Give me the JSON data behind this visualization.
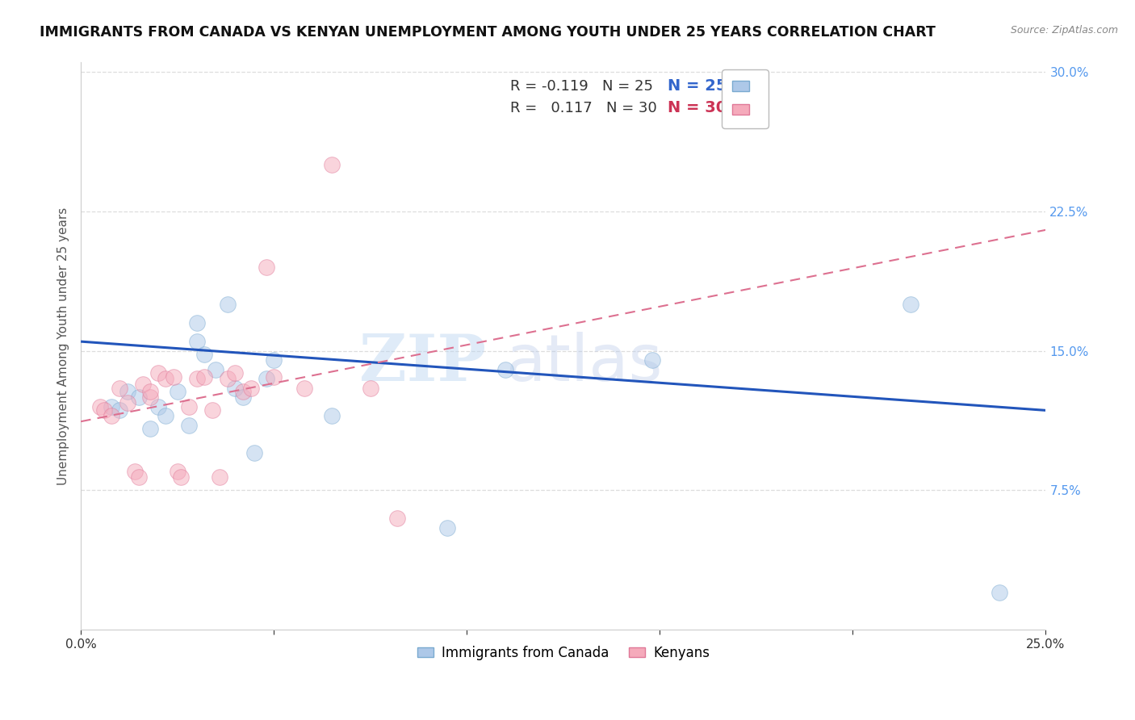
{
  "title": "IMMIGRANTS FROM CANADA VS KENYAN UNEMPLOYMENT AMONG YOUTH UNDER 25 YEARS CORRELATION CHART",
  "source": "Source: ZipAtlas.com",
  "ylabel": "Unemployment Among Youth under 25 years",
  "xlim": [
    0.0,
    0.25
  ],
  "ylim": [
    0.0,
    0.305
  ],
  "xticks": [
    0.0,
    0.05,
    0.1,
    0.15,
    0.2,
    0.25
  ],
  "xtick_labels": [
    "0.0%",
    "",
    "",
    "",
    "",
    "25.0%"
  ],
  "yticks_right": [
    0.075,
    0.15,
    0.225,
    0.3
  ],
  "ytick_labels_right": [
    "7.5%",
    "15.0%",
    "22.5%",
    "30.0%"
  ],
  "blue_scatter_x": [
    0.008,
    0.01,
    0.012,
    0.015,
    0.018,
    0.02,
    0.022,
    0.025,
    0.028,
    0.03,
    0.03,
    0.032,
    0.035,
    0.038,
    0.04,
    0.042,
    0.045,
    0.048,
    0.05,
    0.065,
    0.095,
    0.11,
    0.148,
    0.215,
    0.238
  ],
  "blue_scatter_y": [
    0.12,
    0.118,
    0.128,
    0.125,
    0.108,
    0.12,
    0.115,
    0.128,
    0.11,
    0.155,
    0.165,
    0.148,
    0.14,
    0.175,
    0.13,
    0.125,
    0.095,
    0.135,
    0.145,
    0.115,
    0.055,
    0.14,
    0.145,
    0.175,
    0.02
  ],
  "pink_scatter_x": [
    0.005,
    0.006,
    0.008,
    0.01,
    0.012,
    0.014,
    0.015,
    0.016,
    0.018,
    0.018,
    0.02,
    0.022,
    0.024,
    0.025,
    0.026,
    0.028,
    0.03,
    0.032,
    0.034,
    0.036,
    0.038,
    0.04,
    0.042,
    0.044,
    0.048,
    0.05,
    0.058,
    0.065,
    0.075,
    0.082
  ],
  "pink_scatter_y": [
    0.12,
    0.118,
    0.115,
    0.13,
    0.122,
    0.085,
    0.082,
    0.132,
    0.125,
    0.128,
    0.138,
    0.135,
    0.136,
    0.085,
    0.082,
    0.12,
    0.135,
    0.136,
    0.118,
    0.082,
    0.135,
    0.138,
    0.128,
    0.13,
    0.195,
    0.136,
    0.13,
    0.25,
    0.13,
    0.06
  ],
  "blue_line_x": [
    0.0,
    0.25
  ],
  "blue_line_y": [
    0.155,
    0.118
  ],
  "pink_line_x": [
    0.0,
    0.25
  ],
  "pink_line_y": [
    0.112,
    0.215
  ],
  "legend_entries": [
    {
      "label_r": "R = -0.119",
      "label_n": "N = 25",
      "color": "#adc8e8"
    },
    {
      "label_r": "R =  0.117",
      "label_n": "N = 30",
      "color": "#f5aabb"
    }
  ],
  "legend_labels_bottom": [
    "Immigrants from Canada",
    "Kenyans"
  ],
  "scatter_size": 200,
  "scatter_alpha": 0.5,
  "blue_color": "#adc8e8",
  "blue_edge_color": "#7aaad0",
  "pink_color": "#f5aabb",
  "pink_edge_color": "#e07898",
  "blue_line_color": "#2255bb",
  "pink_line_color": "#dd7090",
  "watermark_zip": "ZIP",
  "watermark_atlas": "atlas",
  "grid_color": "#dddddd",
  "background_color": "#ffffff",
  "title_fontsize": 12.5,
  "axis_label_fontsize": 11,
  "tick_fontsize": 11,
  "right_tick_color": "#5599ee"
}
